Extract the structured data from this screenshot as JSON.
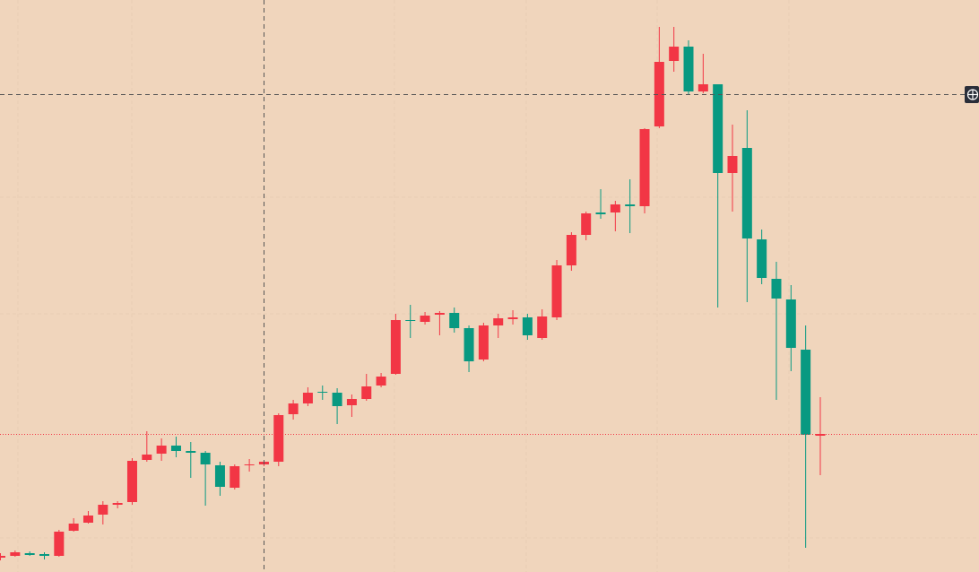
{
  "chart_data": {
    "type": "candlestick",
    "up_color": "#f23645",
    "down_color": "#089981",
    "ylim": [
      0,
      638
    ],
    "open": [
      16,
      18,
      21,
      20,
      18,
      46,
      55,
      64,
      75,
      78,
      125,
      132,
      141,
      135,
      133,
      119,
      94,
      119,
      120,
      123,
      176,
      188,
      201,
      200,
      186,
      193,
      208,
      221,
      281,
      279,
      287,
      289,
      272,
      237,
      275,
      282,
      284,
      261,
      284,
      342,
      376,
      401,
      401,
      410,
      408,
      497,
      570,
      586,
      536,
      544,
      445,
      473,
      371,
      327,
      304,
      248,
      152
    ],
    "high": [
      21,
      24,
      23,
      22,
      47,
      60,
      68,
      79,
      79,
      127,
      157,
      149,
      151,
      145,
      135,
      123,
      120,
      126,
      124,
      177,
      192,
      206,
      208,
      205,
      198,
      221,
      222,
      288,
      298,
      290,
      291,
      295,
      275,
      278,
      288,
      292,
      288,
      293,
      348,
      379,
      402,
      427,
      414,
      438,
      495,
      608,
      608,
      593,
      578,
      544,
      499,
      515,
      382,
      346,
      320,
      275,
      195
    ],
    "low": [
      13,
      17,
      18,
      14,
      17,
      45,
      54,
      53,
      71,
      75,
      123,
      124,
      128,
      105,
      74,
      85,
      92,
      112,
      118,
      118,
      170,
      185,
      192,
      165,
      173,
      191,
      206,
      220,
      261,
      276,
      264,
      267,
      223,
      235,
      261,
      276,
      259,
      259,
      281,
      336,
      370,
      394,
      380,
      378,
      400,
      495,
      558,
      532,
      534,
      295,
      402,
      301,
      321,
      192,
      224,
      27,
      108
    ],
    "close": [
      18,
      22,
      19,
      18,
      45,
      54,
      63,
      75,
      77,
      124,
      131,
      141,
      135,
      133,
      120,
      95,
      118,
      120,
      123,
      175,
      188,
      200,
      200,
      185,
      193,
      207,
      218,
      281,
      280,
      286,
      289,
      272,
      235,
      275,
      283,
      284,
      264,
      285,
      342,
      376,
      400,
      399,
      410,
      408,
      494,
      569,
      586,
      536,
      544,
      445,
      464,
      372,
      328,
      305,
      250,
      153,
      154
    ]
  }
}
